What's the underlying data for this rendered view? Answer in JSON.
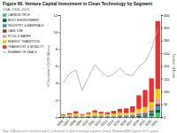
{
  "chart_data": {
    "type": "bar",
    "title": "Figure 60. Venture Capital Investment in Clean Technology by Segment",
    "subtitle": "USA, 2006–2021",
    "annotations": [
      "Note: USA represents total disclosed VC investments in clean technology segments. Source: BloombergNEF. Data for 2021 is partial."
    ],
    "ylabel": "VC Investment (USD Billions)",
    "y2label": "Number of Deals",
    "categories": [
      "2006",
      "2007",
      "2008",
      "2009",
      "2010",
      "2011",
      "2012",
      "2013",
      "2014",
      "2015",
      "2016",
      "2017",
      "2018",
      "2019",
      "2020",
      "2021"
    ],
    "stacked": true,
    "grid": false,
    "legend": "top-left",
    "ylim": [
      0,
      12
    ],
    "yticks": [
      0,
      2,
      4,
      6,
      8,
      10,
      12
    ],
    "y2lim": [
      0,
      400
    ],
    "y2ticks": [
      0,
      50,
      100,
      150,
      200,
      250,
      300,
      350,
      400
    ],
    "series": [
      {
        "name": "CARBON TECH",
        "color": "#33cc66",
        "values": [
          0.0,
          0.0,
          0.0,
          0.0,
          0.0,
          0.0,
          0.0,
          0.0,
          0.0,
          0.0,
          0.0,
          0.0,
          0.0,
          0.05,
          0.15,
          0.5
        ]
      },
      {
        "name": "BUILT ENVIRONMENT",
        "color": "#006633",
        "values": [
          0.04,
          0.04,
          0.05,
          0.03,
          0.04,
          0.07,
          0.06,
          0.04,
          0.04,
          0.07,
          0.07,
          0.08,
          0.15,
          0.15,
          0.25,
          0.4
        ]
      },
      {
        "name": "INDUSTRY & MATERIALS",
        "color": "#3399cc",
        "values": [
          0.04,
          0.04,
          0.05,
          0.03,
          0.04,
          0.04,
          0.04,
          0.04,
          0.04,
          0.04,
          0.04,
          0.04,
          0.08,
          0.08,
          0.15,
          0.35
        ]
      },
      {
        "name": "LAND USE",
        "color": "#7a4e2d",
        "values": [
          0.0,
          0.04,
          0.04,
          0.0,
          0.04,
          0.04,
          0.04,
          0.04,
          0.04,
          0.07,
          0.07,
          0.07,
          0.15,
          0.2,
          0.25,
          0.3
        ]
      },
      {
        "name": "FOOD & WATER",
        "color": "#f5a0a0",
        "values": [
          0.04,
          0.04,
          0.04,
          0.04,
          0.04,
          0.07,
          0.07,
          0.07,
          0.07,
          0.07,
          0.07,
          0.15,
          0.2,
          0.25,
          0.35,
          0.55
        ]
      },
      {
        "name": "ENERGY TRANSITION",
        "color": "#f5c800",
        "values": [
          0.08,
          0.15,
          0.25,
          0.15,
          0.22,
          0.32,
          0.22,
          0.15,
          0.22,
          0.3,
          0.22,
          0.22,
          0.38,
          0.45,
          0.6,
          1.2
        ]
      },
      {
        "name": "TRANSPORT & MOBILITY",
        "color": "#e83030",
        "values": [
          0.1,
          0.15,
          0.25,
          0.1,
          0.15,
          0.25,
          0.18,
          0.22,
          0.3,
          0.4,
          0.55,
          0.7,
          1.6,
          2.0,
          2.8,
          8.0
        ]
      },
      {
        "name": "NUMBER OF DEALS",
        "type": "line",
        "axis": "y2",
        "color": "#aaaaaa",
        "values": [
          135,
          170,
          185,
          105,
          155,
          205,
          178,
          158,
          168,
          192,
          168,
          162,
          198,
          218,
          265,
          345
        ]
      }
    ]
  }
}
